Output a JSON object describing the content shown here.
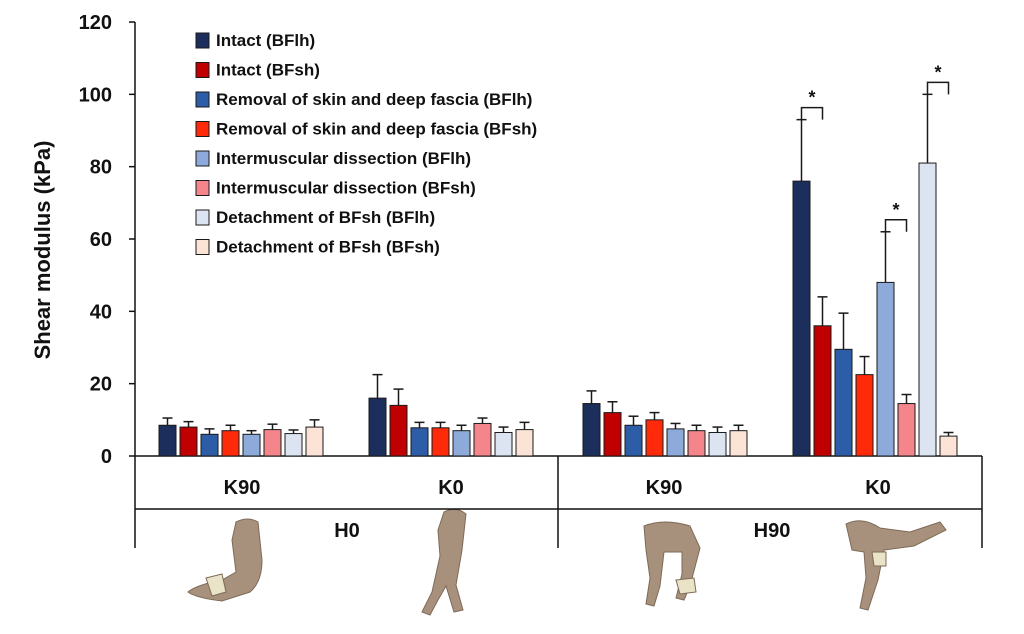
{
  "chart_data": {
    "type": "bar",
    "ylabel": "Shear modulus (kPa)",
    "ylim": [
      0,
      120
    ],
    "yticks": [
      0,
      20,
      40,
      60,
      80,
      100,
      120
    ],
    "grid": false,
    "legend_position": "top-left",
    "groups": [
      {
        "hip": "H0",
        "knee": "K90"
      },
      {
        "hip": "H0",
        "knee": "K0"
      },
      {
        "hip": "H90",
        "knee": "K90"
      },
      {
        "hip": "H90",
        "knee": "K0"
      }
    ],
    "categories": [
      "K90",
      "K0",
      "K90",
      "K0"
    ],
    "outer_categories": [
      "H0",
      "H90"
    ],
    "series": [
      {
        "name": "Intact (BFlh)",
        "color": "#1c2e5c",
        "values": [
          8.5,
          16,
          14.5,
          76
        ],
        "errors": [
          2,
          6.5,
          3.5,
          17
        ]
      },
      {
        "name": "Intact (BFsh)",
        "color": "#c00000",
        "values": [
          8,
          14,
          12,
          36
        ],
        "errors": [
          1.5,
          4.5,
          3,
          8
        ]
      },
      {
        "name": "Removal of skin and deep fascia (BFlh)",
        "color": "#2e5da8",
        "values": [
          6,
          7.8,
          8.5,
          29.5
        ],
        "errors": [
          1.5,
          1.5,
          2.5,
          10
        ]
      },
      {
        "name": "Removal of skin and deep fascia (BFsh)",
        "color": "#ff2a0a",
        "values": [
          7,
          7.8,
          10,
          22.5
        ],
        "errors": [
          1.5,
          1.5,
          2,
          5
        ]
      },
      {
        "name": "Intermuscular dissection (BFlh)",
        "color": "#8eaadb",
        "values": [
          6,
          7,
          7.5,
          48
        ],
        "errors": [
          1,
          1.5,
          1.5,
          14
        ]
      },
      {
        "name": "Intermuscular dissection (BFsh)",
        "color": "#f4858a",
        "values": [
          7.3,
          9,
          7,
          14.5
        ],
        "errors": [
          1.5,
          1.5,
          1.5,
          2.5
        ]
      },
      {
        "name": "Detachment of BFsh (BFlh)",
        "color": "#dce4f2",
        "values": [
          6.2,
          6.5,
          6.5,
          81
        ],
        "errors": [
          1,
          1.5,
          1.5,
          19
        ]
      },
      {
        "name": "Detachment of BFsh (BFsh)",
        "color": "#fbe3d6",
        "values": [
          8,
          7.3,
          7,
          5.5
        ],
        "errors": [
          2,
          2,
          1.5,
          1
        ]
      }
    ],
    "significance": [
      {
        "group": 3,
        "from_series": 0,
        "to_series": 1,
        "label": "*"
      },
      {
        "group": 3,
        "from_series": 4,
        "to_series": 5,
        "label": "*"
      },
      {
        "group": 3,
        "from_series": 6,
        "to_series": 7,
        "label": "*"
      }
    ]
  },
  "images": [
    {
      "name": "h0-k90-leg-photo",
      "description": "cadaver leg specimen, hip 0, knee 90"
    },
    {
      "name": "h0-k0-leg-photo",
      "description": "cadaver leg specimen, hip 0, knee 0"
    },
    {
      "name": "h90-k90-leg-photo",
      "description": "cadaver leg specimen, hip 90, knee 90"
    },
    {
      "name": "h90-k0-leg-photo",
      "description": "cadaver leg specimen, hip 90, knee 0"
    }
  ]
}
